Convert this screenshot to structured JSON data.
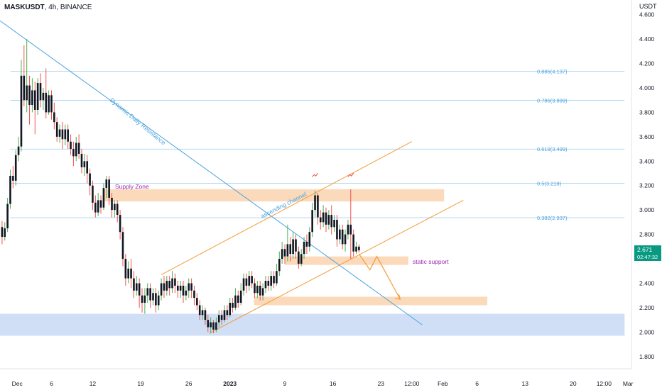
{
  "header": {
    "symbol": "MASKUSDT",
    "interval": "4h",
    "exchange": "BINANCE"
  },
  "price_axis": {
    "currency": "USDT",
    "current_price": "2.671",
    "countdown": "02:47:32"
  },
  "chart_data": {
    "type": "candlestick",
    "ylim": [
      1.7,
      4.72
    ],
    "xlim_days": [
      -2.5,
      89.5
    ],
    "y_ticks": [
      "1.800",
      "2.000",
      "2.200",
      "2.400",
      "2.600",
      "2.800",
      "3.000",
      "3.200",
      "3.400",
      "3.600",
      "3.800",
      "4.000",
      "4.200",
      "4.400",
      "4.600"
    ],
    "x_ticks": [
      {
        "day": 0,
        "label": "Dec"
      },
      {
        "day": 5,
        "label": "6"
      },
      {
        "day": 11,
        "label": "12"
      },
      {
        "day": 18,
        "label": "19"
      },
      {
        "day": 25,
        "label": "26"
      },
      {
        "day": 31,
        "label": "2023",
        "bold": true
      },
      {
        "day": 39,
        "label": "9"
      },
      {
        "day": 46,
        "label": "16"
      },
      {
        "day": 53,
        "label": "23"
      },
      {
        "day": 57.5,
        "label": "12:00"
      },
      {
        "day": 62,
        "label": "Feb"
      },
      {
        "day": 67,
        "label": "6"
      },
      {
        "day": 74,
        "label": "13"
      },
      {
        "day": 81,
        "label": "20"
      },
      {
        "day": 85.5,
        "label": "12:00"
      },
      {
        "day": 89,
        "label": "Mar"
      }
    ],
    "candles": [
      [
        -2.2,
        2.86,
        2.78,
        2.91,
        2.72
      ],
      [
        -1.8,
        2.78,
        2.85,
        2.9,
        2.75
      ],
      [
        -1.4,
        2.85,
        3.05,
        3.1,
        2.82
      ],
      [
        -1.0,
        3.05,
        3.28,
        3.33,
        3.01
      ],
      [
        -0.6,
        3.28,
        3.24,
        3.36,
        3.18
      ],
      [
        -0.2,
        3.24,
        3.45,
        3.49,
        3.2
      ],
      [
        0.2,
        3.45,
        3.52,
        3.6,
        3.4
      ],
      [
        0.6,
        3.52,
        4.1,
        4.23,
        3.48
      ],
      [
        1.0,
        4.1,
        3.9,
        4.35,
        3.85
      ],
      [
        1.4,
        3.9,
        4.02,
        4.4,
        3.8
      ],
      [
        1.8,
        4.02,
        3.86,
        4.1,
        3.7
      ],
      [
        2.2,
        3.86,
        3.98,
        4.08,
        3.8
      ],
      [
        2.6,
        3.98,
        3.82,
        4.05,
        3.62
      ],
      [
        3.0,
        3.82,
        4.04,
        4.08,
        3.78
      ],
      [
        3.4,
        4.04,
        3.9,
        4.12,
        3.84
      ],
      [
        3.8,
        3.9,
        3.96,
        4.0,
        3.82
      ],
      [
        4.2,
        3.96,
        3.8,
        4.16,
        3.75
      ],
      [
        4.6,
        3.8,
        3.94,
        3.98,
        3.78
      ],
      [
        5.0,
        3.94,
        3.8,
        3.98,
        3.74
      ],
      [
        5.4,
        3.8,
        3.72,
        3.88,
        3.66
      ],
      [
        5.8,
        3.72,
        3.6,
        3.76,
        3.56
      ],
      [
        6.2,
        3.6,
        3.66,
        3.7,
        3.55
      ],
      [
        6.6,
        3.66,
        3.58,
        3.72,
        3.5
      ],
      [
        7.0,
        3.58,
        3.66,
        3.7,
        3.53
      ],
      [
        7.4,
        3.66,
        3.56,
        3.7,
        3.5
      ],
      [
        7.8,
        3.56,
        3.5,
        3.62,
        3.45
      ],
      [
        8.2,
        3.5,
        3.44,
        3.56,
        3.36
      ],
      [
        8.6,
        3.44,
        3.55,
        3.6,
        3.4
      ],
      [
        9.0,
        3.55,
        3.46,
        3.62,
        3.42
      ],
      [
        9.4,
        3.46,
        3.35,
        3.5,
        3.3
      ],
      [
        9.8,
        3.35,
        3.4,
        3.46,
        3.28
      ],
      [
        10.2,
        3.4,
        3.3,
        3.45,
        3.22
      ],
      [
        10.6,
        3.3,
        3.2,
        3.34,
        3.12
      ],
      [
        11.0,
        3.2,
        3.06,
        3.24,
        3.0
      ],
      [
        11.4,
        3.06,
        2.98,
        3.12,
        2.94
      ],
      [
        11.8,
        2.98,
        3.08,
        3.14,
        2.95
      ],
      [
        12.2,
        3.08,
        3.02,
        3.12,
        2.97
      ],
      [
        12.6,
        3.02,
        3.18,
        3.22,
        3.0
      ],
      [
        13.0,
        3.18,
        3.25,
        3.28,
        3.1
      ],
      [
        13.4,
        3.25,
        3.1,
        3.28,
        3.04
      ],
      [
        13.8,
        3.1,
        3.0,
        3.14,
        2.94
      ],
      [
        14.2,
        3.0,
        3.05,
        3.08,
        2.94
      ],
      [
        14.6,
        3.05,
        2.96,
        3.08,
        2.9
      ],
      [
        15.0,
        2.96,
        2.82,
        3.0,
        2.76
      ],
      [
        15.4,
        2.82,
        2.6,
        2.86,
        2.54
      ],
      [
        15.8,
        2.6,
        2.44,
        2.64,
        2.38
      ],
      [
        16.2,
        2.44,
        2.52,
        2.58,
        2.4
      ],
      [
        16.6,
        2.52,
        2.44,
        2.6,
        2.36
      ],
      [
        17.0,
        2.44,
        2.34,
        2.5,
        2.28
      ],
      [
        17.4,
        2.34,
        2.4,
        2.46,
        2.3
      ],
      [
        17.8,
        2.4,
        2.3,
        2.44,
        2.2
      ],
      [
        18.2,
        2.3,
        2.24,
        2.36,
        2.16
      ],
      [
        18.6,
        2.24,
        2.3,
        2.36,
        2.15
      ],
      [
        19.0,
        2.3,
        2.36,
        2.4,
        2.24
      ],
      [
        19.4,
        2.36,
        2.26,
        2.4,
        2.2
      ],
      [
        19.8,
        2.26,
        2.32,
        2.36,
        2.22
      ],
      [
        20.2,
        2.32,
        2.22,
        2.36,
        2.16
      ],
      [
        20.6,
        2.22,
        2.3,
        2.34,
        2.18
      ],
      [
        21.0,
        2.3,
        2.4,
        2.44,
        2.26
      ],
      [
        21.4,
        2.4,
        2.34,
        2.46,
        2.28
      ],
      [
        21.8,
        2.34,
        2.42,
        2.46,
        2.3
      ],
      [
        22.2,
        2.42,
        2.36,
        2.46,
        2.3
      ],
      [
        22.6,
        2.36,
        2.44,
        2.5,
        2.32
      ],
      [
        23.0,
        2.44,
        2.38,
        2.48,
        2.32
      ],
      [
        23.4,
        2.38,
        2.34,
        2.42,
        2.28
      ],
      [
        23.8,
        2.34,
        2.38,
        2.42,
        2.28
      ],
      [
        24.2,
        2.38,
        2.3,
        2.42,
        2.24
      ],
      [
        24.6,
        2.3,
        2.34,
        2.38,
        2.26
      ],
      [
        25.0,
        2.34,
        2.4,
        2.44,
        2.28
      ],
      [
        25.4,
        2.4,
        2.34,
        2.44,
        2.28
      ],
      [
        25.8,
        2.34,
        2.28,
        2.38,
        2.22
      ],
      [
        26.2,
        2.28,
        2.22,
        2.32,
        2.18
      ],
      [
        26.6,
        2.22,
        2.14,
        2.26,
        2.1
      ],
      [
        27.0,
        2.14,
        2.18,
        2.22,
        2.1
      ],
      [
        27.4,
        2.18,
        2.1,
        2.2,
        2.06
      ],
      [
        27.8,
        2.1,
        2.04,
        2.14,
        2.0
      ],
      [
        28.2,
        2.04,
        2.08,
        2.12,
        1.99
      ],
      [
        28.6,
        2.08,
        2.02,
        2.1,
        1.99
      ],
      [
        29.0,
        2.02,
        2.08,
        2.12,
        2.0
      ],
      [
        29.4,
        2.08,
        2.14,
        2.18,
        2.04
      ],
      [
        29.8,
        2.14,
        2.1,
        2.18,
        2.06
      ],
      [
        30.2,
        2.1,
        2.18,
        2.22,
        2.08
      ],
      [
        30.6,
        2.18,
        2.14,
        2.22,
        2.1
      ],
      [
        31.0,
        2.14,
        2.24,
        2.28,
        2.12
      ],
      [
        31.4,
        2.24,
        2.2,
        2.28,
        2.16
      ],
      [
        31.8,
        2.2,
        2.3,
        2.36,
        2.18
      ],
      [
        32.2,
        2.3,
        2.24,
        2.34,
        2.2
      ],
      [
        32.6,
        2.24,
        2.34,
        2.4,
        2.22
      ],
      [
        33.0,
        2.34,
        2.44,
        2.48,
        2.3
      ],
      [
        33.4,
        2.44,
        2.38,
        2.48,
        2.32
      ],
      [
        33.8,
        2.38,
        2.46,
        2.5,
        2.34
      ],
      [
        34.2,
        2.46,
        2.4,
        2.5,
        2.36
      ],
      [
        34.6,
        2.4,
        2.32,
        2.44,
        2.28
      ],
      [
        35.0,
        2.32,
        2.38,
        2.42,
        2.28
      ],
      [
        35.4,
        2.38,
        2.3,
        2.42,
        2.26
      ],
      [
        35.8,
        2.3,
        2.36,
        2.4,
        2.26
      ],
      [
        36.2,
        2.36,
        2.42,
        2.46,
        2.32
      ],
      [
        36.6,
        2.42,
        2.38,
        2.46,
        2.34
      ],
      [
        37.0,
        2.38,
        2.46,
        2.5,
        2.34
      ],
      [
        37.4,
        2.46,
        2.4,
        2.5,
        2.36
      ],
      [
        37.8,
        2.4,
        2.5,
        2.56,
        2.38
      ],
      [
        38.2,
        2.5,
        2.6,
        2.66,
        2.46
      ],
      [
        38.6,
        2.6,
        2.68,
        2.74,
        2.56
      ],
      [
        39.0,
        2.68,
        2.62,
        2.72,
        2.56
      ],
      [
        39.4,
        2.62,
        2.72,
        2.88,
        2.58
      ],
      [
        39.8,
        2.72,
        2.64,
        2.78,
        2.58
      ],
      [
        40.2,
        2.64,
        2.76,
        2.82,
        2.6
      ],
      [
        40.6,
        2.76,
        2.66,
        2.8,
        2.6
      ],
      [
        41.0,
        2.66,
        2.56,
        2.7,
        2.52
      ],
      [
        41.4,
        2.56,
        2.64,
        2.68,
        2.54
      ],
      [
        41.8,
        2.64,
        2.74,
        2.78,
        2.6
      ],
      [
        42.2,
        2.74,
        2.7,
        2.8,
        2.64
      ],
      [
        42.6,
        2.7,
        2.82,
        2.86,
        2.66
      ],
      [
        43.0,
        2.82,
        3.0,
        3.06,
        2.78
      ],
      [
        43.4,
        3.0,
        3.12,
        3.16,
        2.94
      ],
      [
        43.8,
        3.12,
        2.94,
        3.14,
        2.88
      ],
      [
        44.2,
        2.94,
        2.9,
        3.0,
        2.84
      ],
      [
        44.6,
        2.9,
        2.98,
        3.04,
        2.86
      ],
      [
        45.0,
        2.98,
        2.88,
        3.02,
        2.82
      ],
      [
        45.4,
        2.88,
        2.96,
        3.0,
        2.84
      ],
      [
        45.8,
        2.96,
        2.86,
        3.04,
        2.8
      ],
      [
        46.2,
        2.86,
        2.92,
        2.96,
        2.82
      ],
      [
        46.6,
        2.92,
        2.76,
        2.96,
        2.7
      ],
      [
        47.0,
        2.76,
        2.84,
        2.88,
        2.72
      ],
      [
        47.4,
        2.84,
        2.72,
        2.88,
        2.68
      ],
      [
        47.8,
        2.72,
        2.8,
        2.84,
        2.66
      ],
      [
        48.2,
        2.8,
        2.88,
        2.92,
        2.76
      ],
      [
        48.6,
        2.88,
        2.8,
        3.17,
        2.6
      ],
      [
        49.0,
        2.8,
        2.66,
        2.84,
        2.62
      ],
      [
        49.4,
        2.66,
        2.7,
        2.74,
        2.64
      ],
      [
        49.8,
        2.7,
        2.67,
        2.72,
        2.65
      ]
    ],
    "fib_levels": [
      {
        "value": 4.137,
        "label": "0.886(4.137)"
      },
      {
        "value": 3.899,
        "label": "0.786(3.899)"
      },
      {
        "value": 3.499,
        "label": "0.618(3.499)"
      },
      {
        "value": 3.218,
        "label": "0.5(3.218)"
      },
      {
        "value": 2.937,
        "label": "0.382(2.937)"
      }
    ],
    "zones": [
      {
        "name": "supply-zone",
        "x0": 12.5,
        "x1": 62.2,
        "y0": 3.07,
        "y1": 3.17,
        "color": "#fad3b0"
      },
      {
        "name": "static-support-zone",
        "x0": 39.0,
        "x1": 57.0,
        "y0": 2.55,
        "y1": 2.62,
        "color": "#fad3b0"
      },
      {
        "name": "lower-support-zone",
        "x0": 34.5,
        "x1": 68.5,
        "y0": 2.22,
        "y1": 2.29,
        "color": "#fad3b0"
      },
      {
        "name": "demand-zone",
        "x0": -2.5,
        "x1": 88.5,
        "y0": 1.97,
        "y1": 2.15,
        "color": "#c8d9f5"
      }
    ],
    "trendlines": [
      {
        "name": "dynamic-daily-resistance",
        "x0": -2.5,
        "y0": 4.55,
        "x1": 59.0,
        "y1": 2.06,
        "color": "#4aa3df"
      },
      {
        "name": "channel-upper",
        "x0": 21.0,
        "y0": 2.47,
        "x1": 57.5,
        "y1": 3.56,
        "color": "#f39b38"
      },
      {
        "name": "channel-lower",
        "x0": 28.0,
        "y0": 1.99,
        "x1": 65.0,
        "y1": 3.08,
        "color": "#f39b38"
      }
    ],
    "projection_path": [
      [
        49.8,
        2.64
      ],
      [
        51.4,
        2.51
      ],
      [
        52.4,
        2.62
      ],
      [
        55.8,
        2.27
      ]
    ],
    "annotations": {
      "supply": "Supply Zone",
      "dynamic": "Dynamic Daily Resistance",
      "channel": "ascending channel",
      "static": "static support"
    },
    "colors": {
      "up": "#131722",
      "down": "#131722",
      "wick_up": "#4caf50",
      "wick_down": "#ef5350",
      "fib": "#4aa3df",
      "supply_text": "#9c27b0",
      "price_badge": "#089981"
    }
  }
}
